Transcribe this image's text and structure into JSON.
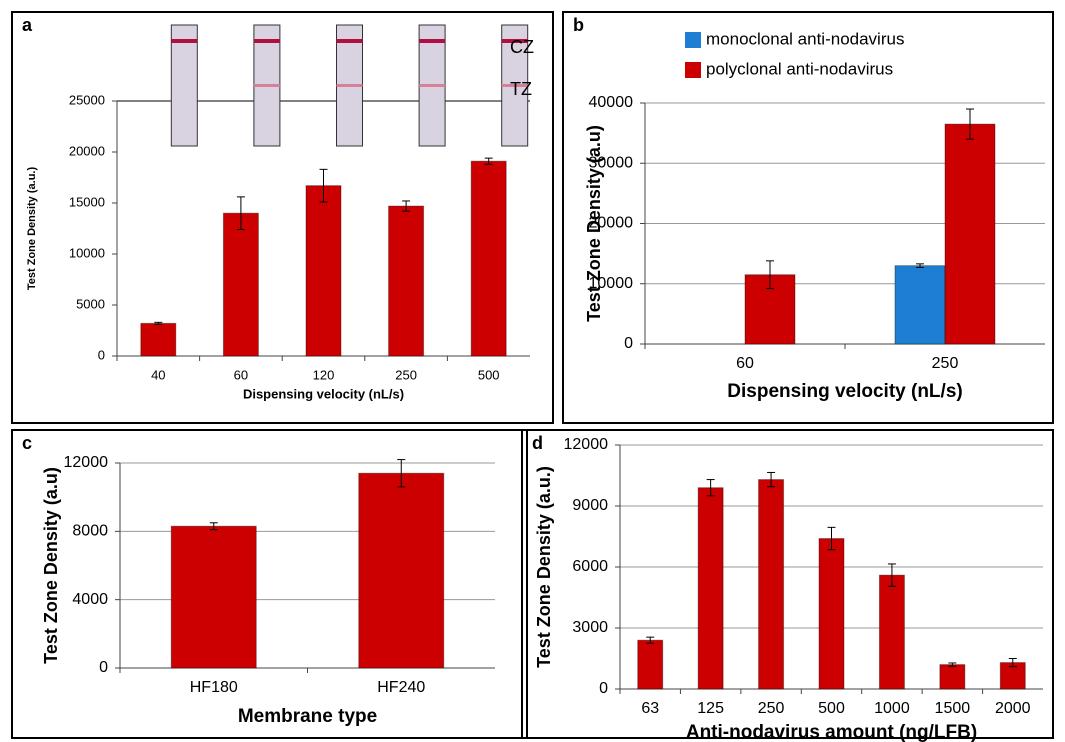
{
  "chart_data": [
    {
      "type": "bar",
      "label": "a",
      "xlabel": "Dispensing velocity (nL/s)",
      "ylabel": "Test Zone Density (a.u.)",
      "categories": [
        "40",
        "60",
        "120",
        "250",
        "500"
      ],
      "values": [
        3200,
        14000,
        16700,
        14700,
        19100
      ],
      "errors": [
        100,
        1600,
        1600,
        500,
        300
      ],
      "color": "#cc0000",
      "ylim": [
        0,
        25000
      ],
      "yticks": [
        0,
        5000,
        10000,
        15000,
        20000,
        25000
      ],
      "grid": false,
      "strip_labels": [
        "CZ",
        "TZ"
      ]
    },
    {
      "type": "bar",
      "label": "b",
      "xlabel": "Dispensing velocity (nL/s)",
      "ylabel": "Test Zone Density (a.u)",
      "categories": [
        "60",
        "250"
      ],
      "series": [
        {
          "name": "monoclonal anti-nodavirus",
          "color": "#1e7fd2",
          "values": [
            null,
            13000
          ],
          "errors": [
            null,
            300
          ]
        },
        {
          "name": "polyclonal anti-nodavirus",
          "color": "#cc0000",
          "values": [
            11500,
            36500
          ],
          "errors": [
            2300,
            2500
          ]
        }
      ],
      "ylim": [
        0,
        40000
      ],
      "yticks": [
        0,
        10000,
        20000,
        30000,
        40000
      ],
      "grid": true,
      "legend": "top-left"
    },
    {
      "type": "bar",
      "label": "c",
      "xlabel": "Membrane type",
      "ylabel": "Test Zone Density (a.u)",
      "categories": [
        "HF180",
        "HF240"
      ],
      "values": [
        8300,
        11400
      ],
      "errors": [
        200,
        800
      ],
      "color": "#cc0000",
      "ylim": [
        0,
        12000
      ],
      "yticks": [
        0,
        4000,
        8000,
        12000
      ],
      "grid": true
    },
    {
      "type": "bar",
      "label": "d",
      "xlabel": "Anti-nodavirus amount (ng/LFB)",
      "ylabel": "Test Zone Density (a.u.)",
      "categories": [
        "63",
        "125",
        "250",
        "500",
        "1000",
        "1500",
        "2000"
      ],
      "values": [
        2400,
        9900,
        10300,
        7400,
        5600,
        1200,
        1300
      ],
      "errors": [
        150,
        400,
        350,
        550,
        550,
        80,
        200
      ],
      "color": "#cc0000",
      "ylim": [
        0,
        12000
      ],
      "yticks": [
        0,
        3000,
        6000,
        9000,
        12000
      ],
      "grid": true
    }
  ]
}
